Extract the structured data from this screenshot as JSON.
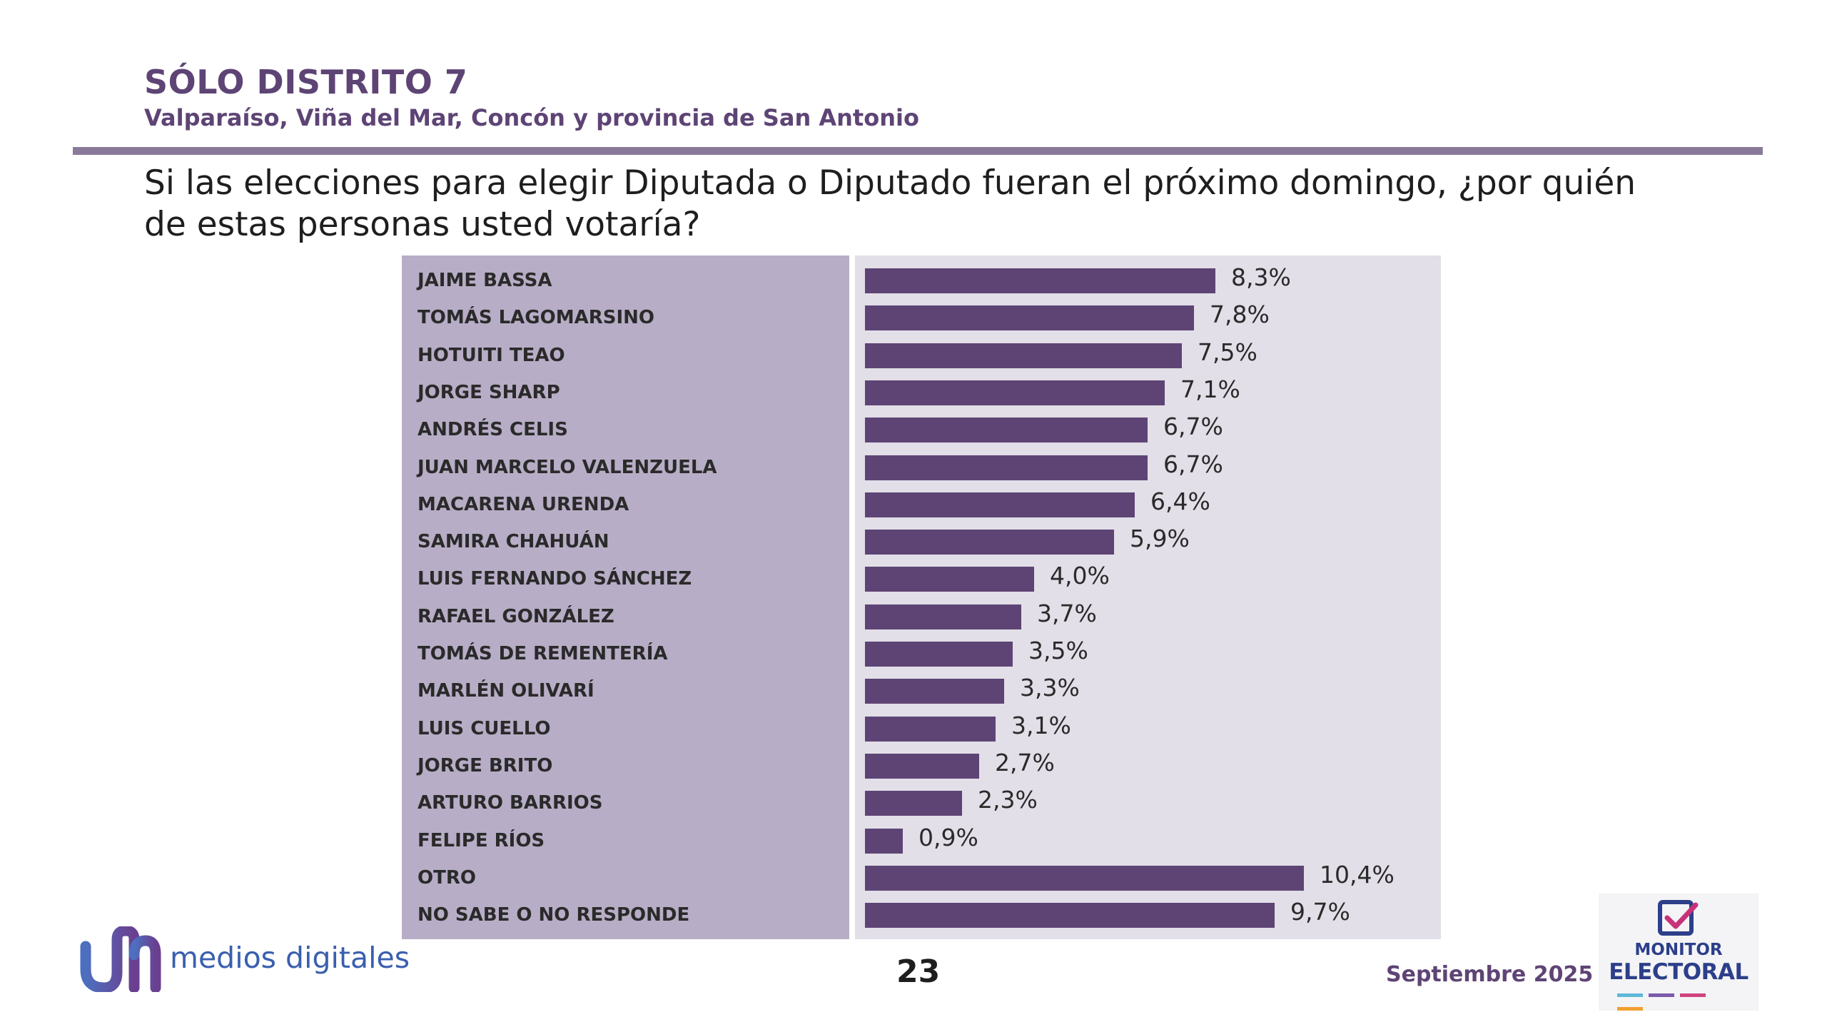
{
  "header": {
    "title": "SÓLO DISTRITO 7",
    "subtitle": "Valparaíso, Viña del Mar, Concón y provincia de San Antonio",
    "question": "Si las elecciones para elegir Diputada o Diputado fueran el próximo domingo, ¿por quién de estas personas usted votaría?"
  },
  "footer": {
    "brand": "medios digitales",
    "page_number": "23",
    "date": "Septiembre 2025",
    "logo_line1": "MONITOR",
    "logo_line2": "ELECTORAL",
    "brand_icon": "medios-digitales-logo-icon",
    "logo_icon": "ballot-check-icon"
  },
  "colors": {
    "bar": "#5e4475",
    "label_panel": "#b8adc6",
    "bar_panel": "#e2dfe8",
    "accent_purple": "#5e4475",
    "logo_blue": "#2d3f8a",
    "check_pink": "#c8327a"
  },
  "chart_data": {
    "type": "bar",
    "orientation": "horizontal",
    "categories": [
      "JAIME BASSA",
      "TOMÁS LAGOMARSINO",
      "HOTUITI TEAO",
      "JORGE SHARP",
      "ANDRÉS CELIS",
      "JUAN MARCELO VALENZUELA",
      "MACARENA URENDA",
      "SAMIRA CHAHUÁN",
      "LUIS FERNANDO SÁNCHEZ",
      "RAFAEL GONZÁLEZ",
      "TOMÁS DE REMENTERÍA",
      "MARLÉN OLIVARÍ",
      "LUIS CUELLO",
      "JORGE BRITO",
      "ARTURO BARRIOS",
      "FELIPE RÍOS",
      "OTRO",
      "NO SABE O NO RESPONDE"
    ],
    "values": [
      8.3,
      7.8,
      7.5,
      7.1,
      6.7,
      6.7,
      6.4,
      5.9,
      4.0,
      3.7,
      3.5,
      3.3,
      3.1,
      2.7,
      2.3,
      0.9,
      10.4,
      9.7
    ],
    "value_labels": [
      "8,3%",
      "7,8%",
      "7,5%",
      "7,1%",
      "6,7%",
      "6,7%",
      "6,4%",
      "5,9%",
      "4,0%",
      "3,7%",
      "3,5%",
      "3,3%",
      "3,1%",
      "2,7%",
      "2,3%",
      "0,9%",
      "10,4%",
      "9,7%"
    ],
    "unit": "%",
    "xlim": [
      0,
      10.4
    ],
    "grid": false
  }
}
